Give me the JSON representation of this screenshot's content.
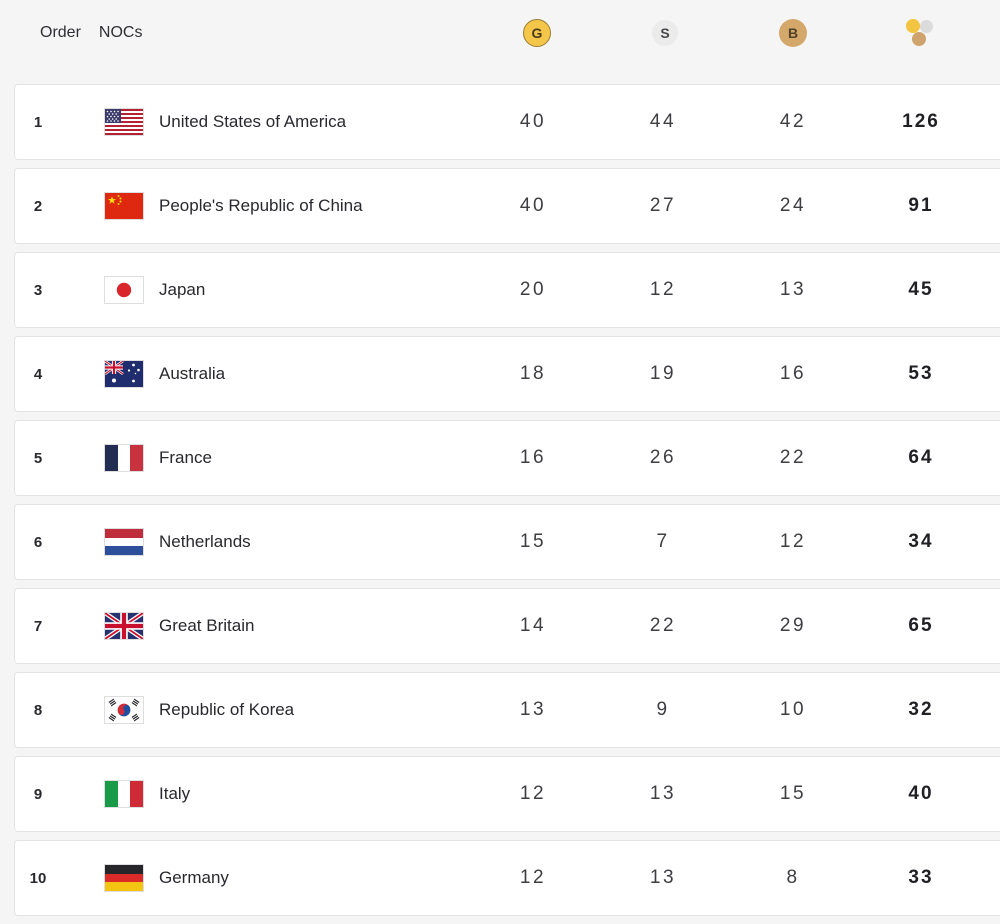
{
  "header": {
    "order_label": "Order",
    "nocs_label": "NOCs",
    "gold_label": "G",
    "silver_label": "S",
    "bronze_label": "B",
    "gold_icon": "gold-medal-icon",
    "silver_icon": "silver-medal-icon",
    "bronze_icon": "bronze-medal-icon",
    "total_icon": "total-medals-icon"
  },
  "colors": {
    "background": "#F5F5F6",
    "card_border": "#E4E4E4",
    "gold": "#F4C64A",
    "silver": "#EBEBEB",
    "bronze": "#D4A76A",
    "text_dark": "#28282E"
  },
  "rows": [
    {
      "order": 1,
      "flag": "us",
      "noc": "United States of America",
      "gold": 40,
      "silver": 44,
      "bronze": 42,
      "total": 126
    },
    {
      "order": 2,
      "flag": "cn",
      "noc": "People's Republic of China",
      "gold": 40,
      "silver": 27,
      "bronze": 24,
      "total": 91
    },
    {
      "order": 3,
      "flag": "jp",
      "noc": "Japan",
      "gold": 20,
      "silver": 12,
      "bronze": 13,
      "total": 45
    },
    {
      "order": 4,
      "flag": "au",
      "noc": "Australia",
      "gold": 18,
      "silver": 19,
      "bronze": 16,
      "total": 53
    },
    {
      "order": 5,
      "flag": "fr",
      "noc": "France",
      "gold": 16,
      "silver": 26,
      "bronze": 22,
      "total": 64
    },
    {
      "order": 6,
      "flag": "nl",
      "noc": "Netherlands",
      "gold": 15,
      "silver": 7,
      "bronze": 12,
      "total": 34
    },
    {
      "order": 7,
      "flag": "gb",
      "noc": "Great Britain",
      "gold": 14,
      "silver": 22,
      "bronze": 29,
      "total": 65
    },
    {
      "order": 8,
      "flag": "kr",
      "noc": "Republic of Korea",
      "gold": 13,
      "silver": 9,
      "bronze": 10,
      "total": 32
    },
    {
      "order": 9,
      "flag": "it",
      "noc": "Italy",
      "gold": 12,
      "silver": 13,
      "bronze": 15,
      "total": 40
    },
    {
      "order": 10,
      "flag": "de",
      "noc": "Germany",
      "gold": 12,
      "silver": 13,
      "bronze": 8,
      "total": 33
    }
  ]
}
